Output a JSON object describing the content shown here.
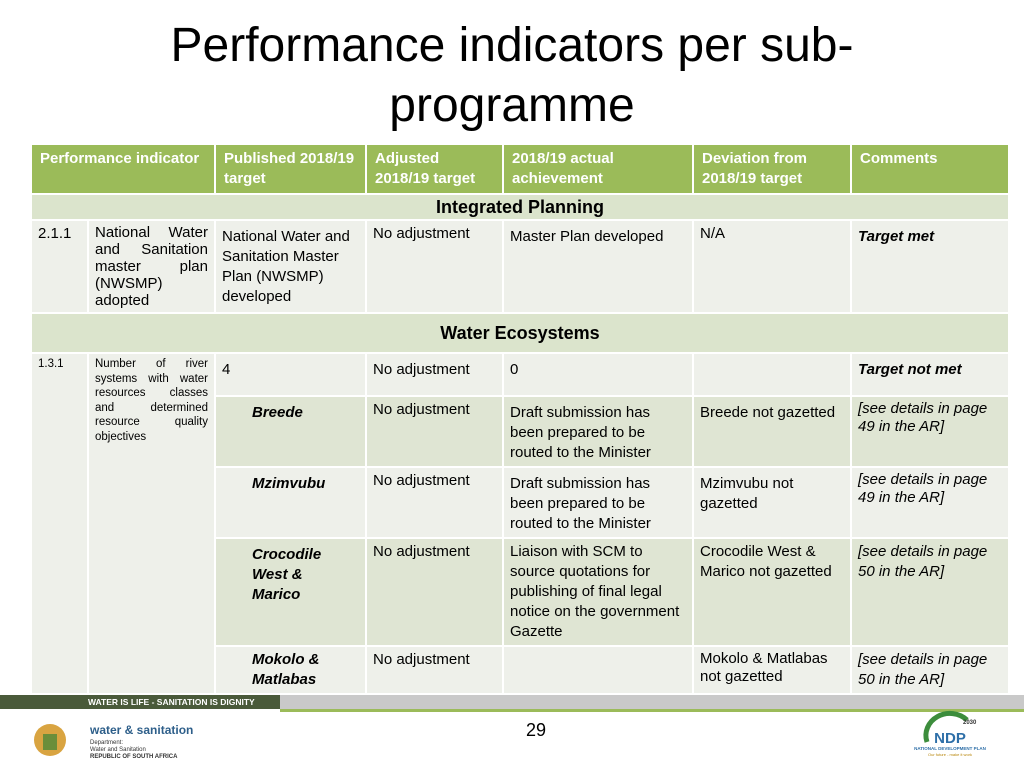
{
  "title": "Performance indicators per sub-programme",
  "table": {
    "header": [
      "Performance indicator",
      "Published 2018/19 target",
      "Adjusted 2018/19 target",
      "2018/19 actual achievement",
      "Deviation from 2018/19 target",
      "Comments"
    ],
    "sections": [
      {
        "title": "Integrated Planning",
        "row": {
          "id": "2.1.1",
          "indicator": "National Water and Sanitation master plan (NWSMP) adopted",
          "target": "National Water and Sanitation Master Plan (NWSMP) developed",
          "adjusted": "No adjustment",
          "actual": "Master Plan developed",
          "deviation": "N/A",
          "comment": "Target met"
        }
      },
      {
        "title": "Water Ecosystems",
        "row": {
          "id": "1.3.1",
          "indicator": "Number of river systems with water resources classes and determined resource quality objectives",
          "target": "4",
          "adjusted": "No adjustment",
          "actual": "0",
          "comment": "Target not met"
        },
        "subrows": [
          {
            "name": "Breede",
            "adjusted": "No adjustment",
            "actual": "Draft submission has been prepared to be routed to the Minister",
            "deviation": "Breede not gazetted",
            "comment": "[see details in page 49 in the AR]"
          },
          {
            "name": "Mzimvubu",
            "adjusted": "No adjustment",
            "actual": "Draft submission has been prepared to be routed to the Minister",
            "deviation": "Mzimvubu not gazetted",
            "comment": "[see details in page 49 in the AR]"
          },
          {
            "name": "Crocodile West & Marico",
            "adjusted": "No adjustment",
            "actual": "Liaison with SCM to source quotations for publishing of final legal notice on the government Gazette",
            "deviation": "Crocodile West & Marico not gazetted",
            "comment": "[see details in page 50 in the AR]"
          },
          {
            "name": "Mokolo & Matlabas",
            "adjusted": "No adjustment",
            "deviation": "Mokolo & Matlabas not gazetted",
            "comment": "[see details in page 50 in the AR]"
          }
        ]
      }
    ]
  },
  "footer": {
    "banner": "WATER IS LIFE - SANITATION IS DIGNITY",
    "dept_name": "water & sanitation",
    "dept_line1": "Department:",
    "dept_line2": "Water and Sanitation",
    "dept_line3": "REPUBLIC OF SOUTH AFRICA",
    "page": "29",
    "ndp_year": "2030",
    "ndp": "NDP",
    "ndp_name": "NATIONAL DEVELOPMENT PLAN",
    "ndp_slogan": "Our future - make it work"
  }
}
